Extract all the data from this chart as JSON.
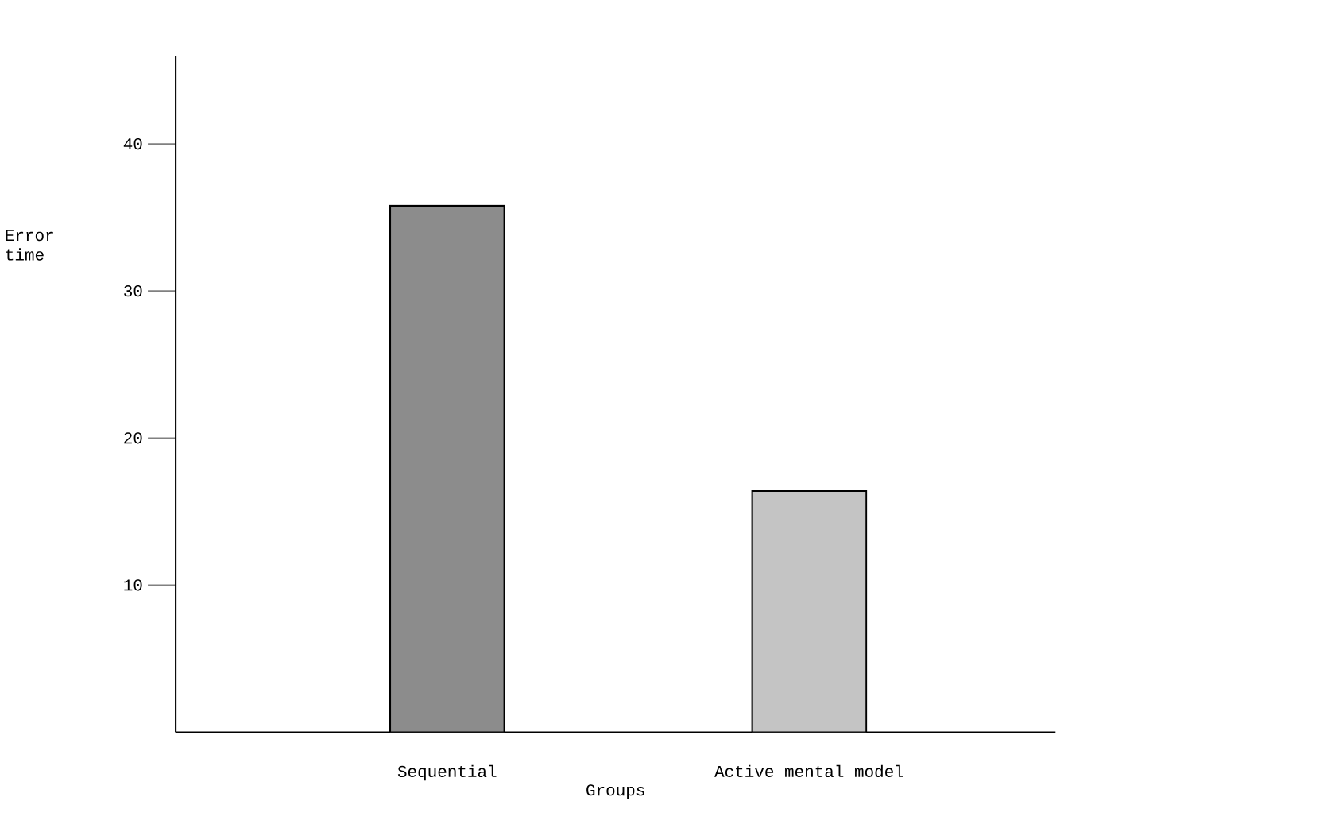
{
  "chart_data": {
    "type": "bar",
    "xlabel": "Groups",
    "ylabel": "Error time",
    "categories": [
      "Sequential",
      "Active mental model"
    ],
    "values": [
      35.8,
      16.4
    ],
    "colors": [
      "#8c8c8c",
      "#c4c4c4"
    ],
    "ylim": [
      0,
      46
    ],
    "yticks": [
      10,
      20,
      30,
      40
    ]
  }
}
